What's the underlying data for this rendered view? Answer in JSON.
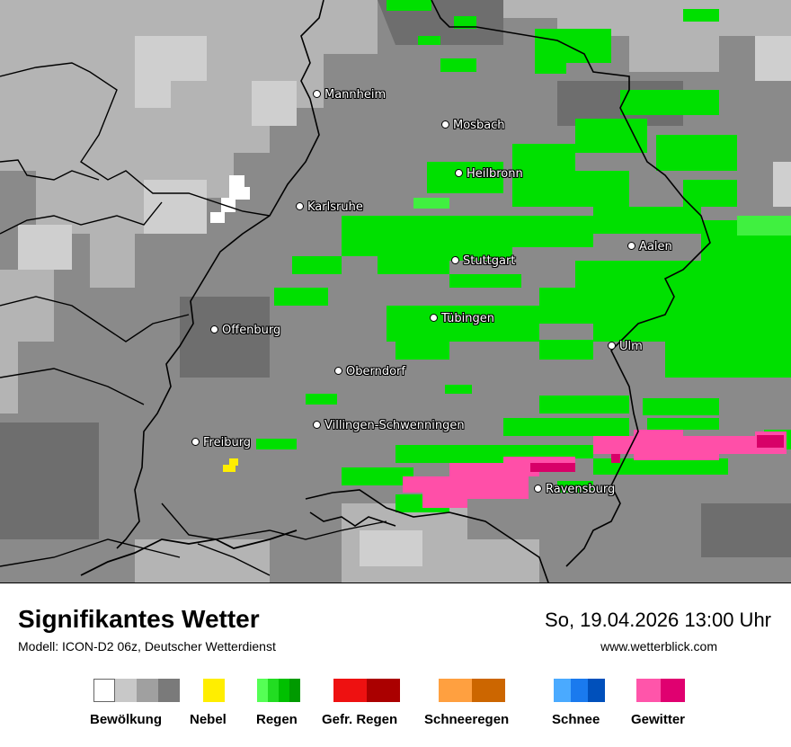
{
  "map": {
    "cities": [
      {
        "name": "Mannheim"
      },
      {
        "name": "Mosbach"
      },
      {
        "name": "Heilbronn"
      },
      {
        "name": "Karlsruhe"
      },
      {
        "name": "Aalen"
      },
      {
        "name": "Stuttgart"
      },
      {
        "name": "Tübingen"
      },
      {
        "name": "Offenburg"
      },
      {
        "name": "Ulm"
      },
      {
        "name": "Oberndorf"
      },
      {
        "name": "Villingen-Schwenningen"
      },
      {
        "name": "Freiburg"
      },
      {
        "name": "Ravensburg"
      }
    ]
  },
  "footer": {
    "title": "Signifikantes Wetter",
    "model": "Modell: ICON-D2 06z, Deutscher Wetterdienst",
    "datetime": "So, 19.04.2026 13:00 Uhr",
    "website": "www.wetterblick.com"
  },
  "legend": [
    {
      "label": "Bewölkung",
      "colors": [
        "#ffffff",
        "#c8c8c8",
        "#a0a0a0",
        "#7a7a7a"
      ]
    },
    {
      "label": "Nebel",
      "colors": [
        "#ffee00"
      ]
    },
    {
      "label": "Regen",
      "colors": [
        "#55ff55",
        "#22dd22",
        "#00c000",
        "#009a00"
      ]
    },
    {
      "label": "Gefr. Regen",
      "colors": [
        "#ee1111",
        "#aa0000"
      ]
    },
    {
      "label": "Schneeregen",
      "colors": [
        "#ffa040",
        "#cc6600"
      ]
    },
    {
      "label": "Schnee",
      "colors": [
        "#4aaaff",
        "#1a7aee",
        "#0050bb"
      ]
    },
    {
      "label": "Gewitter",
      "colors": [
        "#ff55aa",
        "#e00070"
      ]
    }
  ]
}
